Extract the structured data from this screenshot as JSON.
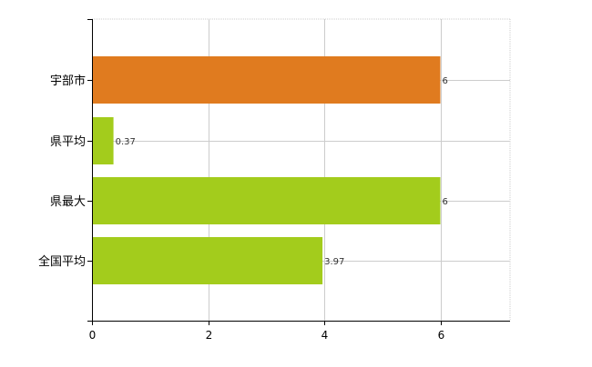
{
  "chart_data": {
    "type": "bar",
    "orientation": "horizontal",
    "categories": [
      "宇部市",
      "県平均",
      "県最大",
      "全国平均"
    ],
    "values": [
      6,
      0.37,
      6,
      3.97
    ],
    "value_labels": [
      "6",
      "0.37",
      "6",
      "3.97"
    ],
    "colors": [
      "#e07b1f",
      "#a3cc1c",
      "#a3cc1c",
      "#a3cc1c"
    ],
    "xlim": [
      0,
      7.2
    ],
    "x_ticks": [
      0,
      2,
      4,
      6
    ],
    "x_tick_labels": [
      "0",
      "2",
      "4",
      "6"
    ],
    "grid": true,
    "grid_color": "#cccccc",
    "axis_color": "#000000"
  }
}
